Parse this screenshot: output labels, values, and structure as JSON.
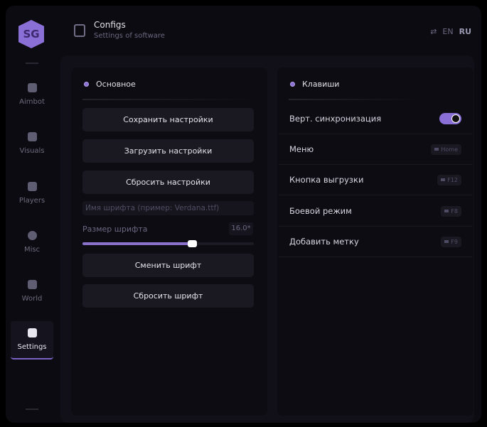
{
  "header": {
    "title": "Configs",
    "subtitle": "Settings of software",
    "lang_en": "EN",
    "lang_ru": "RU"
  },
  "logo_text": "SG",
  "sidebar": {
    "items": [
      {
        "label": "Aimbot",
        "icon": "skull-icon"
      },
      {
        "label": "Visuals",
        "icon": "vr-glasses-icon"
      },
      {
        "label": "Players",
        "icon": "players-icon"
      },
      {
        "label": "Misc",
        "icon": "chat-bubble-icon"
      },
      {
        "label": "World",
        "icon": "briefcase-icon"
      },
      {
        "label": "Settings",
        "icon": "list-icon",
        "active": true
      }
    ]
  },
  "main": {
    "title": "Основное",
    "save": "Сохранить настройки",
    "load": "Загрузить настройки",
    "reset": "Сбросить настройки",
    "font_placeholder": "Имя шрифта (пример: Verdana.ttf)",
    "font_size_label": "Размер шрифта",
    "font_size_value": "16.0*",
    "font_size_fraction": 0.64,
    "change_font": "Сменить шрифт",
    "reset_font": "Сбросить шрифт"
  },
  "keys": {
    "title": "Клавиши",
    "rows": [
      {
        "label": "Верт. синхронизация",
        "toggle": true
      },
      {
        "label": "Меню",
        "key": "Home"
      },
      {
        "label": "Кнопка выгрузки",
        "key": "F12"
      },
      {
        "label": "Боевой режим",
        "key": "F8"
      },
      {
        "label": "Добавить метку",
        "key": "F9"
      }
    ]
  },
  "colors": {
    "accent": "#8a6fd6",
    "bg": "#0c0b11"
  }
}
